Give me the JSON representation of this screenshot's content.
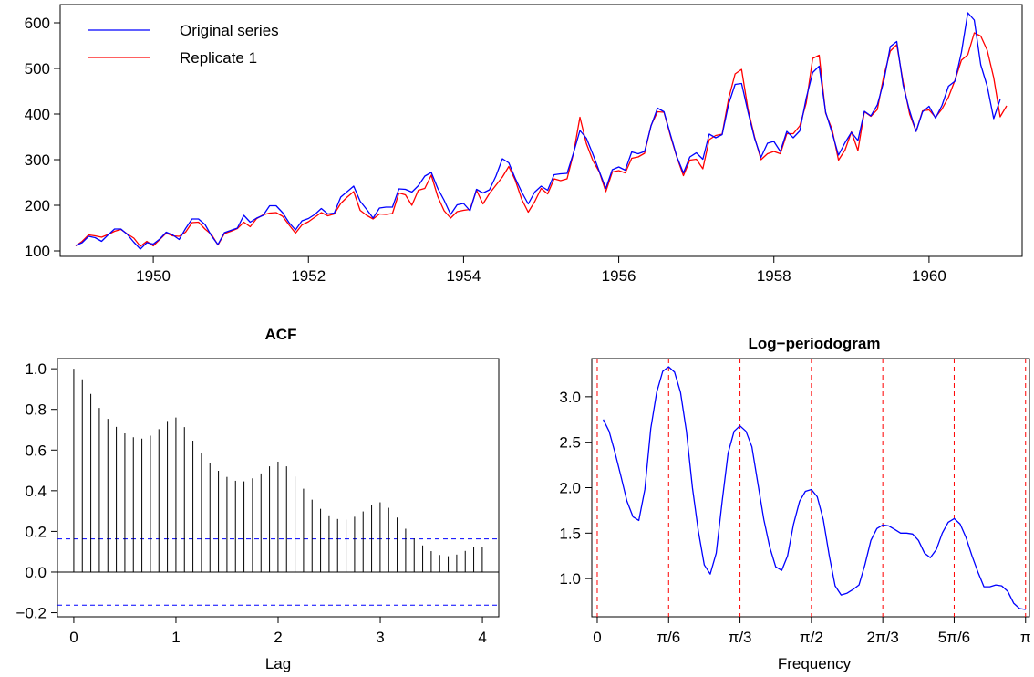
{
  "chart_data": [
    {
      "type": "line",
      "title": "",
      "xlabel": "",
      "ylabel": "",
      "xlim": [
        1948.8,
        1961.2
      ],
      "ylim": [
        88,
        640
      ],
      "x_start": 1949,
      "x_step_months": 1,
      "x_ticks": [
        1950,
        1952,
        1954,
        1956,
        1958,
        1960
      ],
      "y_ticks": [
        100,
        200,
        300,
        400,
        500,
        600
      ],
      "legend": {
        "placement": "top-left",
        "entries": [
          "Original series",
          "Replicate 1"
        ]
      },
      "series": [
        {
          "name": "Original series",
          "color": "#0000ff",
          "values": [
            112,
            118,
            132,
            129,
            121,
            135,
            148,
            148,
            136,
            119,
            104,
            118,
            115,
            126,
            141,
            135,
            125,
            149,
            170,
            170,
            158,
            133,
            114,
            140,
            145,
            150,
            178,
            163,
            172,
            178,
            199,
            199,
            184,
            162,
            146,
            166,
            171,
            180,
            193,
            181,
            183,
            218,
            230,
            242,
            209,
            191,
            172,
            194,
            196,
            196,
            236,
            235,
            229,
            243,
            264,
            272,
            237,
            211,
            180,
            201,
            204,
            188,
            235,
            227,
            234,
            264,
            302,
            293,
            259,
            229,
            203,
            229,
            242,
            233,
            267,
            269,
            270,
            315,
            364,
            347,
            312,
            274,
            237,
            278,
            284,
            277,
            317,
            313,
            318,
            374,
            413,
            405,
            355,
            306,
            271,
            306,
            315,
            301,
            356,
            348,
            355,
            422,
            465,
            467,
            404,
            347,
            305,
            336,
            340,
            318,
            362,
            348,
            363,
            435,
            491,
            505,
            404,
            359,
            310,
            337,
            360,
            342,
            406,
            396,
            420,
            472,
            548,
            559,
            463,
            407,
            362,
            405,
            417,
            391,
            419,
            461,
            472,
            535,
            622,
            606,
            508,
            461,
            390,
            432
          ]
        },
        {
          "name": "Replicate 1",
          "color": "#ff0000",
          "values": [
            111,
            121,
            135,
            133,
            130,
            136,
            143,
            147,
            137,
            128,
            110,
            121,
            111,
            125,
            139,
            133,
            132,
            141,
            162,
            163,
            148,
            136,
            113,
            138,
            143,
            149,
            163,
            153,
            171,
            179,
            183,
            184,
            176,
            157,
            139,
            157,
            164,
            174,
            184,
            177,
            181,
            204,
            218,
            230,
            189,
            178,
            170,
            181,
            180,
            182,
            227,
            223,
            200,
            233,
            237,
            266,
            219,
            188,
            172,
            186,
            189,
            191,
            233,
            203,
            226,
            244,
            262,
            285,
            255,
            213,
            185,
            208,
            237,
            225,
            258,
            254,
            258,
            314,
            393,
            335,
            298,
            273,
            230,
            273,
            276,
            271,
            303,
            306,
            314,
            375,
            405,
            404,
            352,
            305,
            265,
            299,
            301,
            280,
            344,
            353,
            356,
            434,
            488,
            498,
            410,
            350,
            300,
            313,
            318,
            313,
            357,
            357,
            374,
            424,
            522,
            529,
            402,
            366,
            299,
            321,
            361,
            320,
            405,
            395,
            410,
            484,
            538,
            552,
            470,
            400,
            362,
            407,
            409,
            393,
            411,
            437,
            474,
            518,
            530,
            578,
            571,
            540,
            480,
            394,
            418
          ]
        }
      ]
    },
    {
      "type": "bar",
      "title": "ACF",
      "xlabel": "Lag",
      "ylabel": "",
      "xlim": [
        -0.16,
        4.16
      ],
      "ylim": [
        -0.22,
        1.05
      ],
      "x_ticks": [
        0,
        1,
        2,
        3,
        4
      ],
      "y_ticks": [
        -0.2,
        0.0,
        0.2,
        0.4,
        0.6,
        0.8,
        1.0
      ],
      "x_step": 0.0833,
      "confidence_band": 0.163,
      "series": [
        {
          "name": "",
          "values": [
            1.0,
            0.948,
            0.876,
            0.807,
            0.753,
            0.714,
            0.682,
            0.663,
            0.656,
            0.671,
            0.703,
            0.743,
            0.76,
            0.713,
            0.646,
            0.586,
            0.538,
            0.498,
            0.468,
            0.449,
            0.446,
            0.461,
            0.485,
            0.52,
            0.543,
            0.52,
            0.47,
            0.41,
            0.356,
            0.311,
            0.279,
            0.261,
            0.258,
            0.272,
            0.298,
            0.331,
            0.343,
            0.316,
            0.268,
            0.213,
            0.165,
            0.131,
            0.103,
            0.084,
            0.078,
            0.086,
            0.104,
            0.123,
            0.124
          ]
        }
      ]
    },
    {
      "type": "line",
      "title": "Log−periodogram",
      "xlabel": "Frequency",
      "ylabel": "",
      "xlim": [
        -0.04,
        3.17
      ],
      "ylim": [
        0.58,
        3.42
      ],
      "x_ticks": [
        0,
        0.5236,
        1.0472,
        1.5708,
        2.0944,
        2.618,
        3.1416
      ],
      "x_tick_labels": [
        "0",
        "π/6",
        "π/3",
        "π/2",
        "2π/3",
        "5π/6",
        "π"
      ],
      "y_ticks": [
        1.0,
        1.5,
        2.0,
        2.5,
        3.0
      ],
      "vertical_reference_lines": [
        0,
        0.5236,
        1.0472,
        1.5708,
        2.0944,
        2.618,
        3.1416
      ],
      "series": [
        {
          "name": "",
          "color": "#0000ff",
          "points": [
            [
              0.044,
              2.75
            ],
            [
              0.087,
              2.62
            ],
            [
              0.131,
              2.38
            ],
            [
              0.175,
              2.12
            ],
            [
              0.218,
              1.85
            ],
            [
              0.262,
              1.68
            ],
            [
              0.305,
              1.64
            ],
            [
              0.349,
              1.98
            ],
            [
              0.393,
              2.65
            ],
            [
              0.436,
              3.05
            ],
            [
              0.48,
              3.28
            ],
            [
              0.524,
              3.33
            ],
            [
              0.567,
              3.27
            ],
            [
              0.611,
              3.05
            ],
            [
              0.654,
              2.62
            ],
            [
              0.698,
              2.0
            ],
            [
              0.742,
              1.52
            ],
            [
              0.785,
              1.15
            ],
            [
              0.829,
              1.05
            ],
            [
              0.873,
              1.28
            ],
            [
              0.916,
              1.85
            ],
            [
              0.96,
              2.38
            ],
            [
              1.004,
              2.62
            ],
            [
              1.047,
              2.68
            ],
            [
              1.091,
              2.62
            ],
            [
              1.134,
              2.45
            ],
            [
              1.178,
              2.05
            ],
            [
              1.222,
              1.65
            ],
            [
              1.265,
              1.35
            ],
            [
              1.309,
              1.13
            ],
            [
              1.353,
              1.09
            ],
            [
              1.396,
              1.25
            ],
            [
              1.44,
              1.6
            ],
            [
              1.484,
              1.85
            ],
            [
              1.527,
              1.96
            ],
            [
              1.571,
              1.98
            ],
            [
              1.614,
              1.9
            ],
            [
              1.658,
              1.65
            ],
            [
              1.702,
              1.25
            ],
            [
              1.745,
              0.92
            ],
            [
              1.789,
              0.82
            ],
            [
              1.833,
              0.84
            ],
            [
              1.876,
              0.88
            ],
            [
              1.92,
              0.93
            ],
            [
              1.963,
              1.15
            ],
            [
              2.007,
              1.42
            ],
            [
              2.051,
              1.55
            ],
            [
              2.094,
              1.59
            ],
            [
              2.138,
              1.58
            ],
            [
              2.182,
              1.54
            ],
            [
              2.225,
              1.5
            ],
            [
              2.269,
              1.5
            ],
            [
              2.313,
              1.49
            ],
            [
              2.356,
              1.42
            ],
            [
              2.4,
              1.28
            ],
            [
              2.443,
              1.23
            ],
            [
              2.487,
              1.32
            ],
            [
              2.531,
              1.5
            ],
            [
              2.574,
              1.62
            ],
            [
              2.618,
              1.66
            ],
            [
              2.662,
              1.6
            ],
            [
              2.705,
              1.45
            ],
            [
              2.749,
              1.25
            ],
            [
              2.793,
              1.07
            ],
            [
              2.836,
              0.91
            ],
            [
              2.88,
              0.91
            ],
            [
              2.923,
              0.93
            ],
            [
              2.967,
              0.92
            ],
            [
              3.011,
              0.86
            ],
            [
              3.054,
              0.73
            ],
            [
              3.098,
              0.67
            ],
            [
              3.142,
              0.66
            ]
          ]
        }
      ]
    }
  ]
}
